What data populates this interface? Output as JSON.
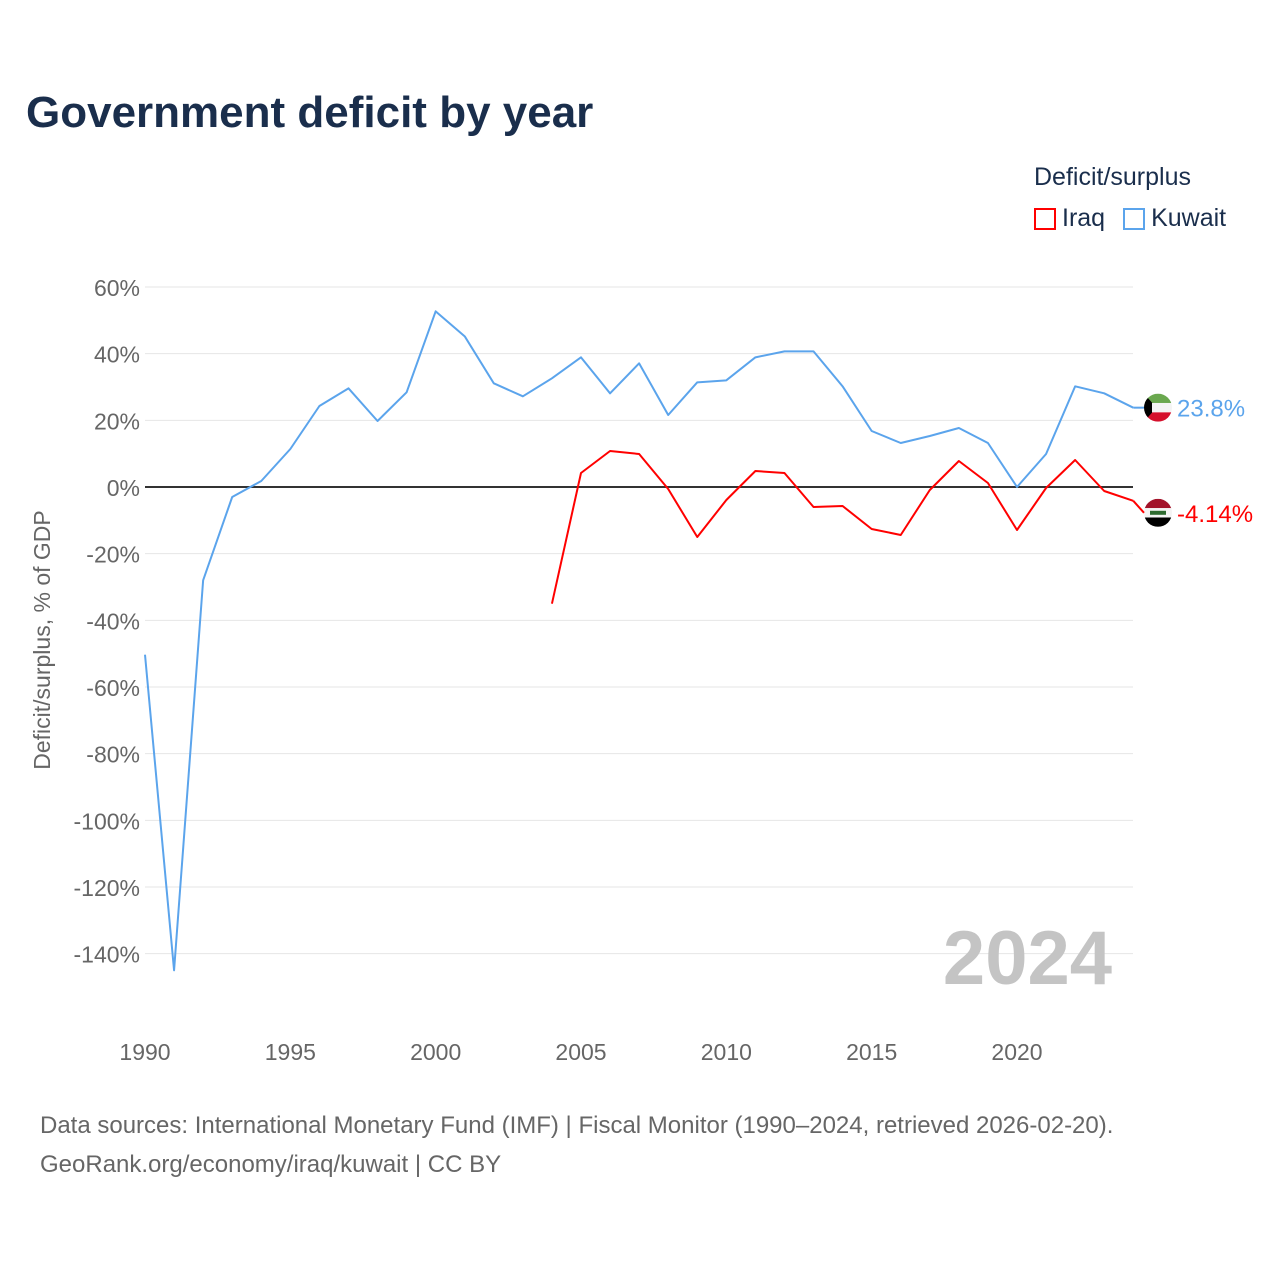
{
  "chart_data": {
    "type": "line",
    "title": "Government deficit by year",
    "xlabel": "",
    "ylabel": "Deficit/surplus, % of GDP",
    "xlim": [
      1990,
      2024
    ],
    "ylim": [
      -150,
      60
    ],
    "x_ticks": [
      "1990",
      "1995",
      "2000",
      "2005",
      "2010",
      "2015",
      "2020"
    ],
    "y_ticks": [
      {
        "v": 60,
        "label": "60%"
      },
      {
        "v": 40,
        "label": "40%"
      },
      {
        "v": 20,
        "label": "20%"
      },
      {
        "v": 0,
        "label": "0%"
      },
      {
        "v": -20,
        "label": "-20%"
      },
      {
        "v": -40,
        "label": "-40%"
      },
      {
        "v": -60,
        "label": "-60%"
      },
      {
        "v": -80,
        "label": "-80%"
      },
      {
        "v": -100,
        "label": "-100%"
      },
      {
        "v": -120,
        "label": "-120%"
      },
      {
        "v": -140,
        "label": "-140%"
      }
    ],
    "grid": true,
    "legend_title": "Deficit/surplus",
    "legend_position": "top-right",
    "watermark_year": "2024",
    "series": [
      {
        "name": "Iraq",
        "color": "#ff0000",
        "end_label": "-4.14%",
        "flag": "iraq",
        "x": [
          2004,
          2005,
          2006,
          2007,
          2008,
          2009,
          2010,
          2011,
          2012,
          2013,
          2014,
          2015,
          2016,
          2017,
          2018,
          2019,
          2020,
          2021,
          2022,
          2023,
          2024
        ],
        "values": [
          -35,
          4.2,
          10.8,
          9.9,
          -0.6,
          -15,
          -3.9,
          4.8,
          4.2,
          -6,
          -5.7,
          -12.6,
          -14.4,
          -0.9,
          7.8,
          1.2,
          -12.9,
          -0.3,
          8.1,
          -1.2,
          -4.14
        ]
      },
      {
        "name": "Kuwait",
        "color": "#5ba4ec",
        "end_label": "23.8%",
        "flag": "kuwait",
        "x": [
          1990,
          1991,
          1992,
          1993,
          1994,
          1995,
          1996,
          1997,
          1998,
          1999,
          2000,
          2001,
          2002,
          2003,
          2004,
          2005,
          2006,
          2007,
          2008,
          2009,
          2010,
          2011,
          2012,
          2013,
          2014,
          2015,
          2016,
          2017,
          2018,
          2019,
          2020,
          2021,
          2022,
          2023,
          2024
        ],
        "values": [
          -50.3,
          -145,
          -28,
          -3,
          1.8,
          11.4,
          24.3,
          29.6,
          19.8,
          28.4,
          52.7,
          45.2,
          31.1,
          27.2,
          32.6,
          38.9,
          28.1,
          37.1,
          21.6,
          31.4,
          32,
          38.9,
          40.7,
          40.7,
          30.2,
          16.8,
          13.2,
          15.3,
          17.7,
          13.2,
          0,
          9.9,
          30.2,
          28.1,
          23.8
        ]
      }
    ]
  },
  "footer": {
    "line1": "Data sources: International Monetary Fund (IMF) | Fiscal Monitor (1990–2024, retrieved 2026-02-20).",
    "line2": "GeoRank.org/economy/iraq/kuwait | CC BY"
  }
}
